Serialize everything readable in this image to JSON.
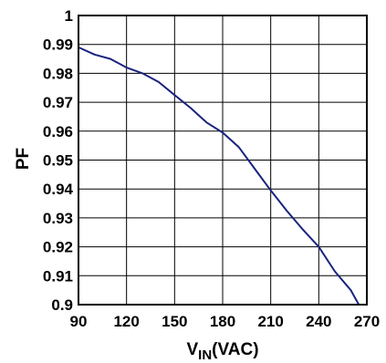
{
  "chart_data": {
    "type": "line",
    "title": "",
    "xlabel": "V",
    "xlabel_sub": "IN",
    "xlabel_unit": "(VAC)",
    "ylabel": "PF",
    "xlim": [
      90,
      270
    ],
    "ylim": [
      0.9,
      1.0
    ],
    "grid": true,
    "x_ticks": [
      90,
      120,
      150,
      180,
      210,
      240,
      270
    ],
    "y_ticks": [
      0.9,
      0.91,
      0.92,
      0.93,
      0.94,
      0.95,
      0.96,
      0.97,
      0.98,
      0.99,
      1
    ],
    "x_tick_labels": [
      "90",
      "120",
      "150",
      "180",
      "210",
      "240",
      "270"
    ],
    "y_tick_labels": [
      "0.9",
      "0.91",
      "0.92",
      "0.93",
      "0.94",
      "0.95",
      "0.96",
      "0.97",
      "0.98",
      "0.99",
      "1"
    ],
    "series": [
      {
        "color": "#1a237e",
        "x": [
          90,
          100,
          110,
          120,
          130,
          140,
          150,
          160,
          170,
          180,
          190,
          200,
          210,
          220,
          230,
          240,
          250,
          260,
          265
        ],
        "y": [
          0.989,
          0.9865,
          0.985,
          0.982,
          0.98,
          0.977,
          0.9725,
          0.968,
          0.963,
          0.9595,
          0.9545,
          0.947,
          0.9395,
          0.9325,
          0.926,
          0.92,
          0.9115,
          0.905,
          0.9
        ]
      }
    ]
  }
}
